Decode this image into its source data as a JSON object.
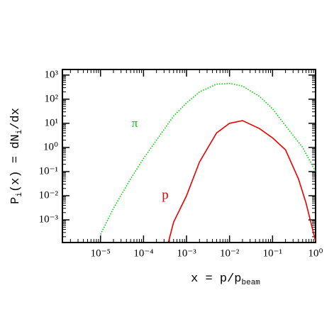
{
  "chart_data": {
    "type": "line",
    "xlog": true,
    "ylog": true,
    "xlabel": [
      "x = p/p",
      "beam"
    ],
    "ylabel": [
      "P",
      "i",
      "(x) = dN",
      "i",
      "/dx"
    ],
    "xlim": [
      1.3e-06,
      1
    ],
    "ylim": [
      0.000115,
      1700
    ],
    "xticks": [
      {
        "value": 1e-05,
        "label": "10⁻⁵"
      },
      {
        "value": 0.0001,
        "label": "10⁻⁴"
      },
      {
        "value": 0.001,
        "label": "10⁻³"
      },
      {
        "value": 0.01,
        "label": "10⁻²"
      },
      {
        "value": 0.1,
        "label": "10⁻¹"
      },
      {
        "value": 1,
        "label": "10⁰"
      }
    ],
    "yticks": [
      {
        "value": 0.001,
        "label": "10⁻³"
      },
      {
        "value": 0.01,
        "label": "10⁻²"
      },
      {
        "value": 0.1,
        "label": "10⁻¹"
      },
      {
        "value": 1,
        "label": "10⁰"
      },
      {
        "value": 10,
        "label": "10¹"
      },
      {
        "value": 100,
        "label": "10²"
      },
      {
        "value": 1000,
        "label": "10³"
      }
    ],
    "series": [
      {
        "name": "π",
        "color": "#00cc00",
        "dash": "dotted",
        "x": [
          1e-05,
          2e-05,
          5e-05,
          0.0001,
          0.0002,
          0.0005,
          0.001,
          0.002,
          0.005,
          0.01,
          0.02,
          0.05,
          0.1,
          0.2,
          0.5,
          1
        ],
        "values": [
          0.00025,
          0.003,
          0.05,
          0.35,
          2,
          20,
          70,
          200,
          420,
          450,
          350,
          130,
          40,
          8,
          1,
          0.1
        ]
      },
      {
        "name": "p",
        "color": "#ee0000",
        "dash": "solid",
        "x": [
          0.00038,
          0.0005,
          0.001,
          0.002,
          0.005,
          0.01,
          0.02,
          0.05,
          0.1,
          0.2,
          0.4,
          0.6,
          1
        ],
        "values": [
          0.00012,
          0.0008,
          0.01,
          0.25,
          4,
          10,
          13,
          6,
          2.5,
          0.8,
          0.05,
          0.005,
          0.00013
        ]
      }
    ]
  }
}
